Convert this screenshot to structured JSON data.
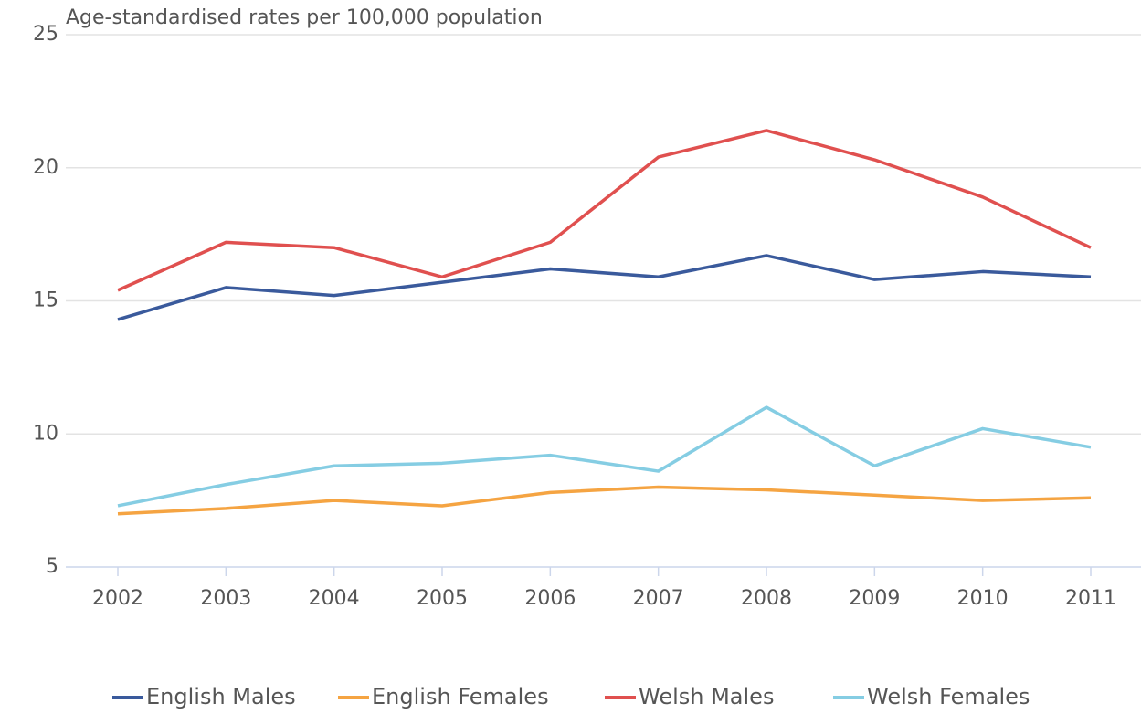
{
  "chart_data": {
    "type": "line",
    "title": "Age-standardised rates per 100,000 population",
    "categories": [
      "2002",
      "2003",
      "2004",
      "2005",
      "2006",
      "2007",
      "2008",
      "2009",
      "2010",
      "2011"
    ],
    "series": [
      {
        "name": "English Males",
        "color": "#3a5a9c",
        "values": [
          14.3,
          15.5,
          15.2,
          15.7,
          16.2,
          15.9,
          16.7,
          15.8,
          16.1,
          15.9
        ]
      },
      {
        "name": "English Females",
        "color": "#f5a442",
        "values": [
          7.0,
          7.2,
          7.5,
          7.3,
          7.8,
          8.0,
          7.9,
          7.7,
          7.5,
          7.6
        ]
      },
      {
        "name": "Welsh Males",
        "color": "#e0504f",
        "values": [
          15.4,
          17.2,
          17.0,
          15.9,
          17.2,
          20.4,
          21.4,
          20.3,
          18.9,
          17.0
        ]
      },
      {
        "name": "Welsh Females",
        "color": "#85cde3",
        "values": [
          7.3,
          8.1,
          8.8,
          8.9,
          9.2,
          8.6,
          11.0,
          8.8,
          10.2,
          9.5
        ]
      }
    ],
    "ylim": [
      5,
      25
    ],
    "yticks": [
      5,
      10,
      15,
      20,
      25
    ],
    "grid": true,
    "legend": "bottom"
  }
}
